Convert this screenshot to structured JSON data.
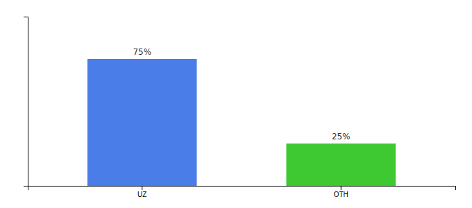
{
  "chart_data": {
    "type": "bar",
    "categories": [
      "UZ",
      "OTH"
    ],
    "values": [
      75,
      25
    ],
    "colors": [
      "#4a7de8",
      "#3ec832"
    ],
    "value_labels": [
      "75%",
      "25%"
    ],
    "data_labels": true,
    "ylim": [
      0,
      100
    ],
    "tick_labels": "x",
    "grid": false
  }
}
